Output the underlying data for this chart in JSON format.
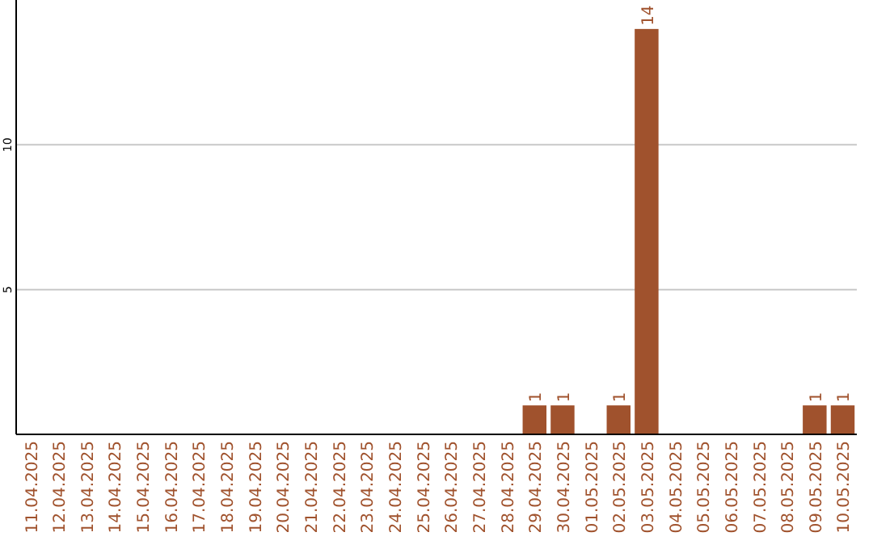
{
  "chart_data": {
    "type": "bar",
    "categories": [
      "11.04.2025",
      "12.04.2025",
      "13.04.2025",
      "14.04.2025",
      "15.04.2025",
      "16.04.2025",
      "17.04.2025",
      "18.04.2025",
      "19.04.2025",
      "20.04.2025",
      "21.04.2025",
      "22.04.2025",
      "23.04.2025",
      "24.04.2025",
      "25.04.2025",
      "26.04.2025",
      "27.04.2025",
      "28.04.2025",
      "29.04.2025",
      "30.04.2025",
      "01.05.2025",
      "02.05.2025",
      "03.05.2025",
      "04.05.2025",
      "05.05.2025",
      "06.05.2025",
      "07.05.2025",
      "08.05.2025",
      "09.05.2025",
      "10.05.2025"
    ],
    "values": [
      0,
      0,
      0,
      0,
      0,
      0,
      0,
      0,
      0,
      0,
      0,
      0,
      0,
      0,
      0,
      0,
      0,
      0,
      1,
      1,
      0,
      1,
      14,
      0,
      0,
      0,
      0,
      0,
      1,
      1
    ],
    "value_labels": [
      null,
      null,
      null,
      null,
      null,
      null,
      null,
      null,
      null,
      null,
      null,
      null,
      null,
      null,
      null,
      null,
      null,
      null,
      "1",
      "1",
      null,
      "1",
      "14",
      null,
      null,
      null,
      null,
      null,
      "1",
      "1"
    ],
    "color": "#a0522d",
    "ylim": [
      0,
      15
    ],
    "yticks": [
      5,
      10
    ],
    "grid": "y"
  }
}
